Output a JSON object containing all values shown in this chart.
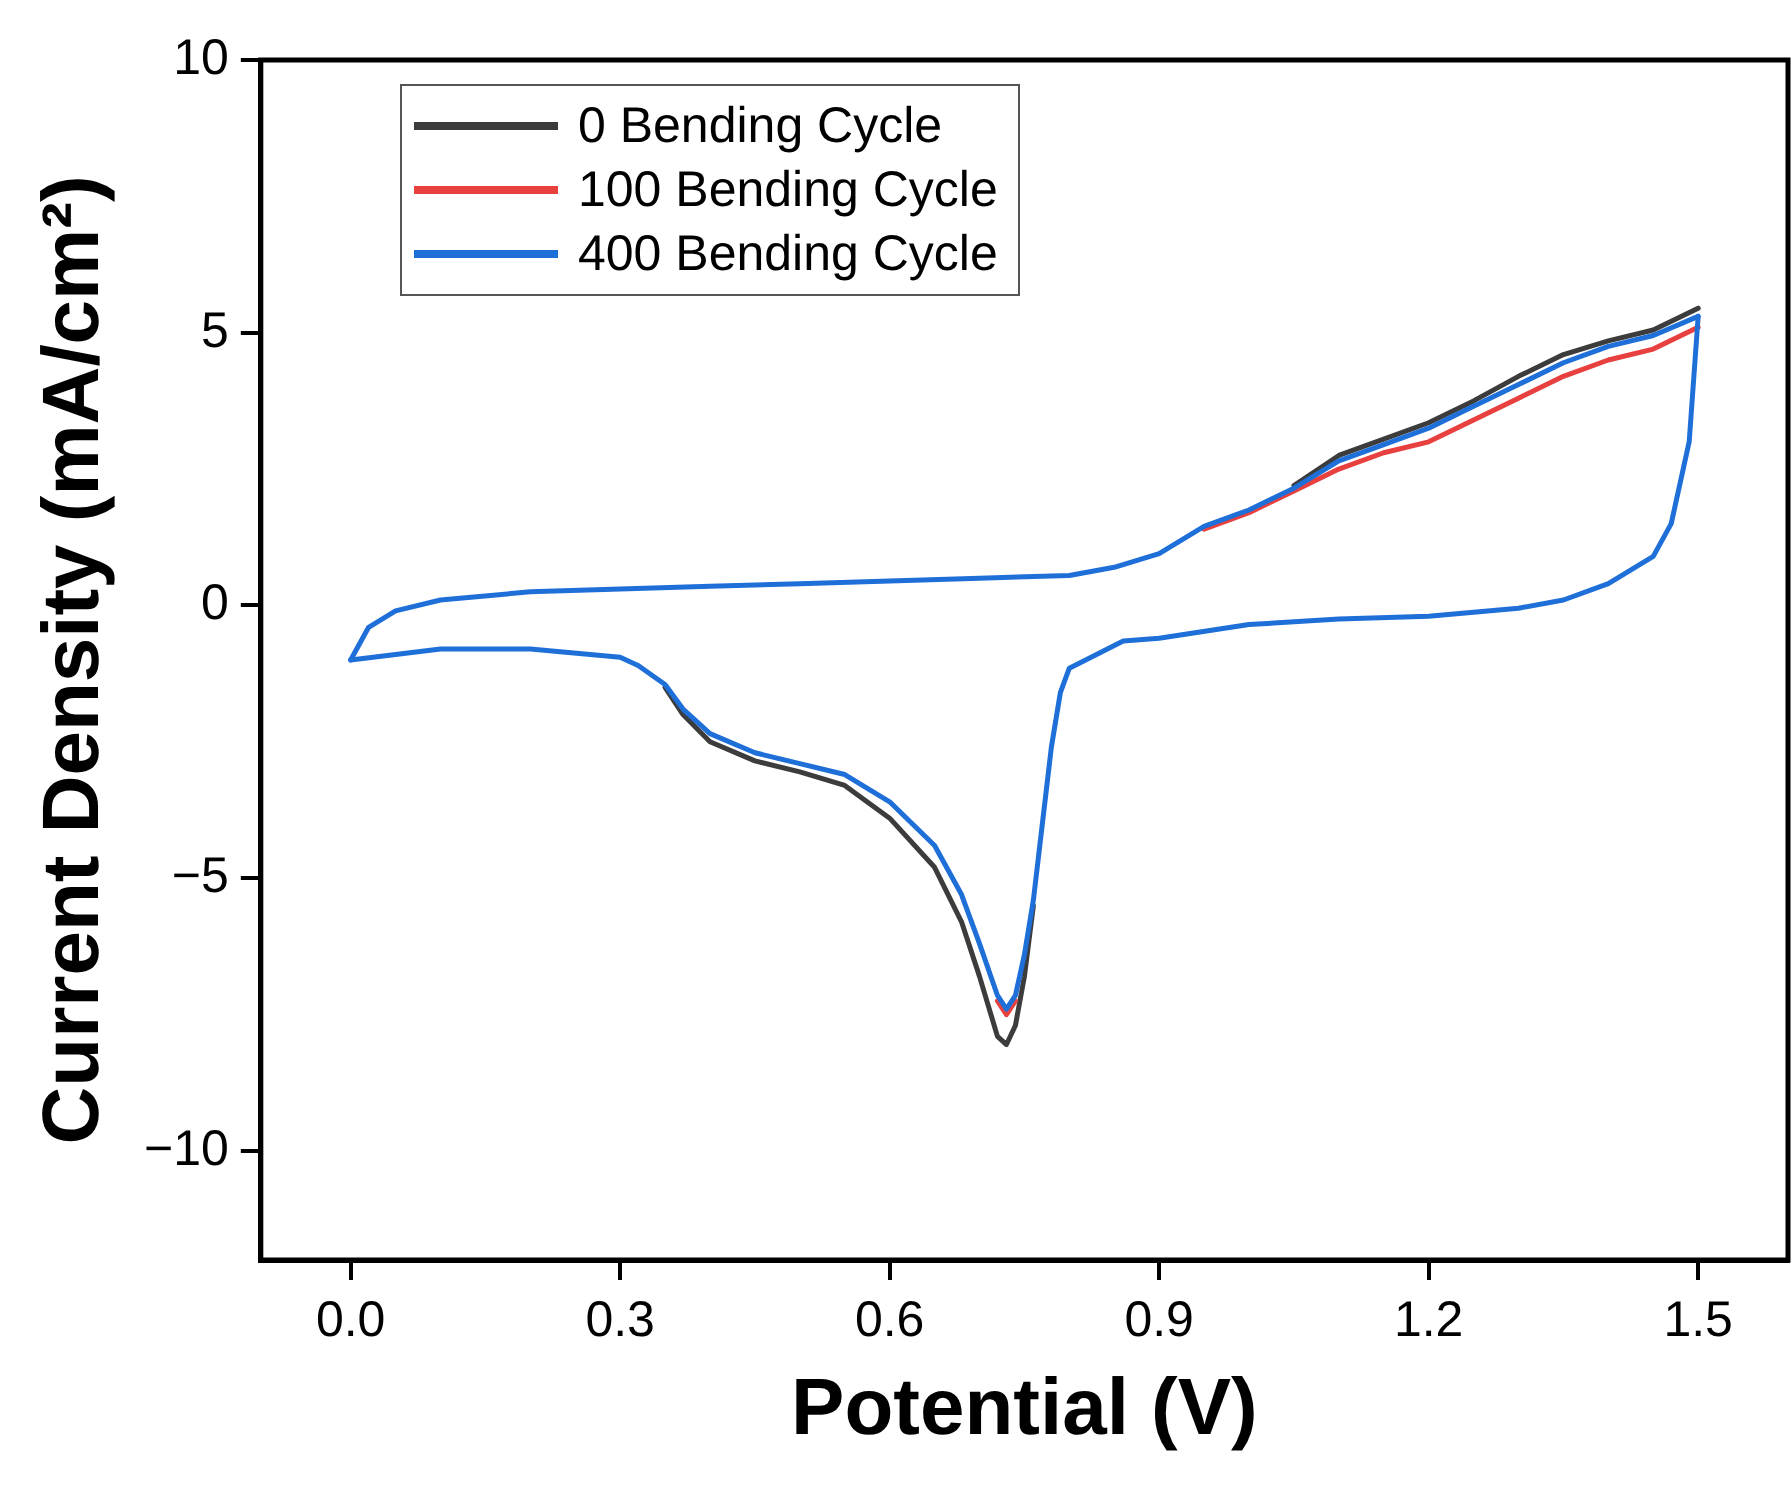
{
  "chart_data": {
    "type": "line",
    "xlabel": "Potential (V)",
    "ylabel": "Current Density (mA/cm²)",
    "series": [
      {
        "name": "0 Bending Cycle",
        "color": "#3c3c3c",
        "x": [
          1.05,
          1.1,
          1.15,
          1.2,
          1.25,
          1.3,
          1.35,
          1.4,
          1.45,
          1.5
        ],
        "values": [
          2.2,
          2.75,
          3.05,
          3.35,
          3.75,
          4.2,
          4.6,
          4.85,
          5.05,
          5.45
        ]
      },
      {
        "color": "#3c3c3c",
        "x": [
          0.76,
          0.75,
          0.74,
          0.73,
          0.72,
          0.7,
          0.68,
          0.65,
          0.6,
          0.55,
          0.5,
          0.45,
          0.4,
          0.37,
          0.35
        ],
        "values": [
          -5.5,
          -6.8,
          -7.7,
          -8.05,
          -7.9,
          -6.8,
          -5.8,
          -4.8,
          -3.9,
          -3.3,
          -3.05,
          -2.85,
          -2.5,
          -2.0,
          -1.5
        ]
      },
      {
        "name": "100 Bending Cycle",
        "color": "#e8403e",
        "x": [
          0.95,
          1.0,
          1.05,
          1.1,
          1.15,
          1.2,
          1.25,
          1.3,
          1.35,
          1.4,
          1.45,
          1.5
        ],
        "values": [
          1.4,
          1.7,
          2.1,
          2.5,
          2.8,
          3.0,
          3.4,
          3.8,
          4.2,
          4.5,
          4.7,
          5.1
        ]
      },
      {
        "color": "#e8403e",
        "x": [
          0.74,
          0.73,
          0.72
        ],
        "values": [
          -7.25,
          -7.5,
          -7.25
        ]
      },
      {
        "name": "400 Bending Cycle",
        "color": "#1f6fd8",
        "x": [
          0,
          0.02,
          0.05,
          0.1,
          0.2,
          0.3,
          0.4,
          0.5,
          0.6,
          0.7,
          0.8,
          0.85,
          0.9,
          0.95,
          1.0,
          1.05,
          1.1,
          1.15,
          1.2,
          1.25,
          1.3,
          1.35,
          1.4,
          1.45,
          1.5
        ],
        "values": [
          -1,
          -0.4,
          -0.1,
          0.1,
          0.25,
          0.3,
          0.35,
          0.4,
          0.45,
          0.5,
          0.55,
          0.7,
          0.95,
          1.45,
          1.75,
          2.15,
          2.65,
          2.95,
          3.25,
          3.65,
          4.05,
          4.45,
          4.75,
          4.95,
          5.3
        ]
      },
      {
        "color": "#1f6fd8",
        "x": [
          1.5,
          1.49,
          1.47,
          1.45,
          1.4,
          1.35,
          1.3,
          1.2,
          1.1,
          1.0,
          0.9,
          0.86,
          0.8,
          0.79,
          0.78,
          0.77,
          0.76,
          0.75,
          0.74,
          0.73,
          0.72,
          0.7,
          0.68,
          0.65,
          0.6,
          0.55,
          0.5,
          0.45,
          0.4,
          0.37,
          0.35,
          0.32,
          0.3,
          0.2,
          0.1,
          0.05,
          0
        ],
        "values": [
          5.3,
          3,
          1.5,
          0.9,
          0.4,
          0.1,
          -0.05,
          -0.2,
          -0.25,
          -0.35,
          -0.6,
          -0.65,
          -1.15,
          -1.6,
          -2.6,
          -4.0,
          -5.4,
          -6.4,
          -7.15,
          -7.4,
          -7.15,
          -6.2,
          -5.3,
          -4.4,
          -3.6,
          -3.1,
          -2.9,
          -2.7,
          -2.35,
          -1.9,
          -1.45,
          -1.1,
          -0.95,
          -0.8,
          -0.8,
          -0.9,
          -1.0
        ]
      }
    ],
    "xlim": [
      -0.1,
      1.6
    ],
    "xticks": [
      {
        "value": 0,
        "label": "0.0"
      },
      0.3,
      0.6,
      0.9,
      1.2,
      1.5
    ],
    "ylim": [
      -12,
      10
    ],
    "yticks": [
      {
        "value": -10,
        "label": "−10"
      },
      {
        "value": -5,
        "label": "−5"
      },
      0,
      5,
      10
    ],
    "legend": "top left",
    "marker": "none",
    "line_style": "solid"
  }
}
